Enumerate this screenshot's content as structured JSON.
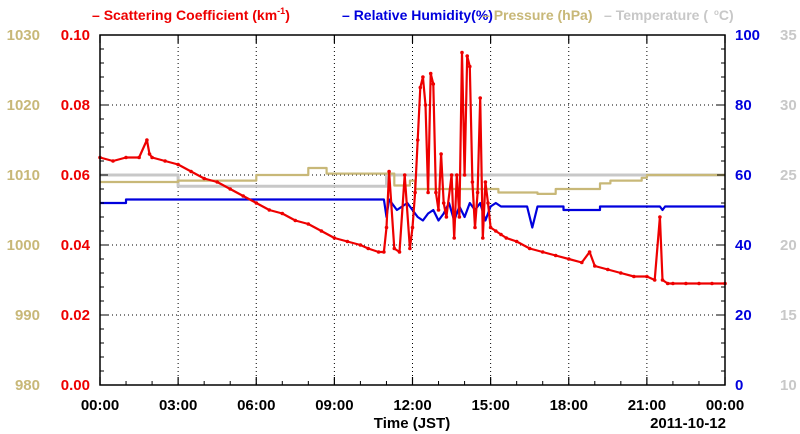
{
  "chart_data": {
    "type": "line",
    "xlabel": "Time (JST)",
    "date_label": "2011-10-12",
    "x_ticks": [
      "00:00",
      "03:00",
      "06:00",
      "09:00",
      "12:00",
      "15:00",
      "18:00",
      "21:00",
      "00:00"
    ],
    "xlim_hours": [
      0,
      24
    ],
    "grid": true,
    "legend_position": "top",
    "axes": {
      "pressure": {
        "label_color": "#c8b878",
        "ylim": [
          980,
          1030
        ],
        "ticks": [
          "980",
          "990",
          "1000",
          "1010",
          "1020",
          "1030"
        ]
      },
      "scattering": {
        "label_color": "#ee0000",
        "ylim": [
          0,
          0.1
        ],
        "ticks": [
          "0.00",
          "0.02",
          "0.04",
          "0.06",
          "0.08",
          "0.10"
        ]
      },
      "humidity": {
        "label_color": "#0000dd",
        "ylim": [
          0,
          100
        ],
        "ticks": [
          "0",
          "20",
          "40",
          "60",
          "80",
          "100"
        ]
      },
      "temperature": {
        "label_color": "#c8c8c8",
        "ylim": [
          10,
          35
        ],
        "ticks": [
          "10",
          "15",
          "20",
          "25",
          "30",
          "35"
        ]
      }
    },
    "series": [
      {
        "name": "Scattering Coefficient (km⁻¹)",
        "legend_text": "Scattering Coefficient (km",
        "legend_sup": "-1",
        "legend_close": ")",
        "axis": "scattering",
        "color": "#ee0000",
        "markers": true,
        "x": [
          0,
          0.5,
          1,
          1.5,
          1.8,
          1.9,
          2,
          2.5,
          3,
          3.5,
          4,
          4.5,
          5,
          5.5,
          6,
          6.5,
          7,
          7.5,
          8,
          8.5,
          9,
          9.5,
          10,
          10.3,
          10.7,
          10.9,
          11.0,
          11.1,
          11.3,
          11.5,
          11.7,
          11.9,
          12.0,
          12.1,
          12.2,
          12.3,
          12.4,
          12.5,
          12.6,
          12.7,
          12.8,
          12.9,
          13.0,
          13.1,
          13.2,
          13.3,
          13.5,
          13.6,
          13.7,
          13.8,
          13.9,
          14.0,
          14.1,
          14.2,
          14.3,
          14.4,
          14.5,
          14.6,
          14.7,
          14.8,
          14.9,
          15.0,
          15.2,
          15.4,
          15.6,
          16,
          16.5,
          17,
          17.5,
          18,
          18.5,
          18.8,
          19,
          19.5,
          20,
          20.5,
          21,
          21.3,
          21.5,
          21.6,
          21.8,
          22,
          22.5,
          23,
          23.5,
          24
        ],
        "y": [
          0.065,
          0.064,
          0.065,
          0.065,
          0.07,
          0.066,
          0.065,
          0.064,
          0.063,
          0.061,
          0.059,
          0.058,
          0.056,
          0.054,
          0.052,
          0.05,
          0.049,
          0.047,
          0.046,
          0.044,
          0.042,
          0.041,
          0.04,
          0.039,
          0.038,
          0.038,
          0.045,
          0.061,
          0.039,
          0.038,
          0.06,
          0.039,
          0.045,
          0.055,
          0.07,
          0.085,
          0.088,
          0.08,
          0.055,
          0.089,
          0.086,
          0.055,
          0.05,
          0.066,
          0.052,
          0.048,
          0.06,
          0.042,
          0.06,
          0.048,
          0.095,
          0.06,
          0.094,
          0.091,
          0.058,
          0.045,
          0.055,
          0.082,
          0.042,
          0.058,
          0.052,
          0.045,
          0.044,
          0.043,
          0.042,
          0.041,
          0.039,
          0.038,
          0.037,
          0.036,
          0.035,
          0.038,
          0.034,
          0.033,
          0.032,
          0.031,
          0.031,
          0.03,
          0.048,
          0.03,
          0.029,
          0.029,
          0.029,
          0.029,
          0.029,
          0.029
        ]
      },
      {
        "name": "Relative Humidity(%)",
        "axis": "humidity",
        "color": "#0000dd",
        "step": true,
        "x": [
          0,
          1.0,
          1.0,
          10.9,
          11.0,
          11.1,
          11.2,
          11.4,
          11.6,
          11.8,
          12.0,
          12.2,
          12.4,
          12.6,
          12.8,
          13.0,
          13.2,
          13.4,
          13.6,
          13.8,
          14.0,
          14.2,
          14.4,
          14.6,
          14.8,
          15.0,
          15.2,
          15.4,
          15.8,
          16.4,
          16.6,
          16.8,
          17.0,
          17.8,
          17.8,
          19.2,
          19.2,
          21.5,
          21.6,
          21.7,
          24
        ],
        "y": [
          52,
          52,
          53,
          53,
          48,
          53,
          52,
          50,
          51,
          52,
          50,
          48,
          47,
          49,
          50,
          47,
          49,
          52,
          47,
          51,
          48,
          52,
          50,
          52,
          47,
          51,
          52,
          51,
          51,
          51,
          45,
          51,
          51,
          51,
          50,
          50,
          51,
          51,
          50,
          51,
          51
        ]
      },
      {
        "name": "Pressure (hPa)",
        "axis": "pressure",
        "color": "#c8b878",
        "step": true,
        "x": [
          0,
          3,
          3,
          6,
          6,
          8,
          8,
          8.7,
          8.7,
          9,
          9,
          11.3,
          11.3,
          11.9,
          11.9,
          12.1,
          12.1,
          15.3,
          15.3,
          16.8,
          16.8,
          17.5,
          17.5,
          19.2,
          19.2,
          19.6,
          19.6,
          20.8,
          20.8,
          21,
          21,
          24
        ],
        "y": [
          1009,
          1009,
          1009.2,
          1009.2,
          1010,
          1010,
          1011,
          1011,
          1010.2,
          1010.2,
          1010.2,
          1010.2,
          1008.5,
          1008.5,
          1009.2,
          1009.2,
          1008.0,
          1008.0,
          1007.5,
          1007.5,
          1007.3,
          1007.3,
          1008.0,
          1008.0,
          1008.8,
          1008.8,
          1009.2,
          1009.2,
          1009.6,
          1009.6,
          1010,
          1010
        ]
      },
      {
        "name": "Temperature (°C)",
        "legend_text": "Temperature (",
        "legend_unit": "C)",
        "axis": "temperature",
        "color": "#c8c8c8",
        "step": true,
        "x": [
          0,
          3,
          3,
          11,
          11,
          24
        ],
        "y": [
          25,
          25,
          24.2,
          24.2,
          25,
          25
        ]
      }
    ]
  }
}
